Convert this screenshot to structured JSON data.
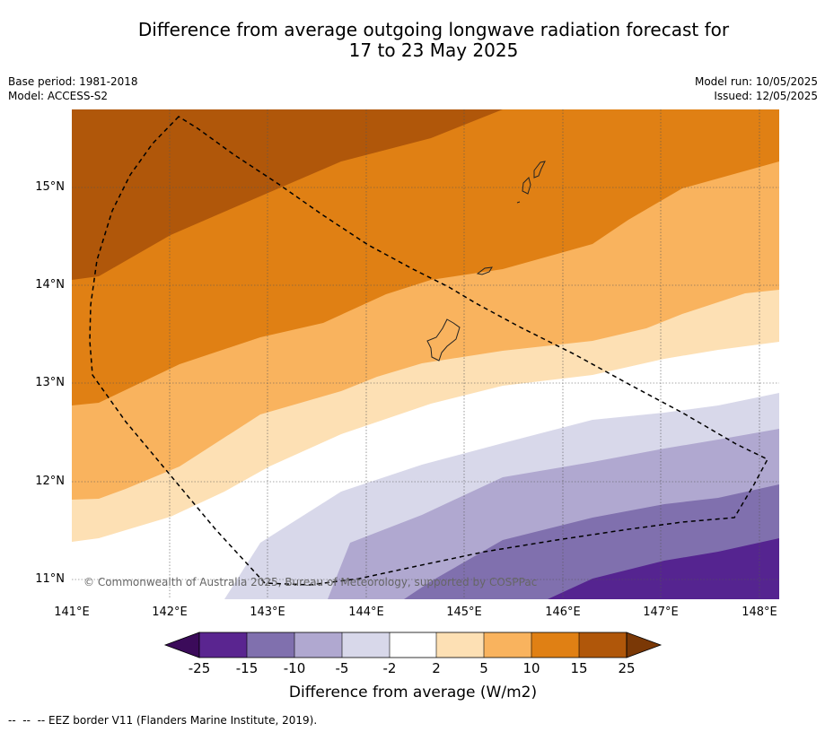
{
  "title": {
    "line1": "Difference from average outgoing longwave radiation forecast for",
    "line2": "17 to 23 May 2025"
  },
  "meta": {
    "base_period": "Base period: 1981-2018",
    "model": "Model: ACCESS-S2",
    "model_run": "Model run: 10/05/2025",
    "issued": "Issued: 12/05/2025"
  },
  "map": {
    "lat_labels": [
      "15°N",
      "14°N",
      "13°N",
      "12°N",
      "11°N"
    ],
    "lon_labels": [
      "141°E",
      "142°E",
      "143°E",
      "144°E",
      "145°E",
      "146°E",
      "147°E",
      "148°E"
    ],
    "copyright": "© Commonwealth of Australia 2025, Bureau of Meteorology, supported by COSPPac",
    "colors": {
      "brown_dark": "#b0570a",
      "orange": "#e08014",
      "orange_light": "#f9b35e",
      "peach": "#fde0b4",
      "white": "#ffffff",
      "lavender_light": "#d8d8ea",
      "lavender": "#b0a8d0",
      "purple_mid": "#8070ae",
      "purple_dark": "#552490"
    }
  },
  "colorbar": {
    "ticks": [
      "-25",
      "-15",
      "-10",
      "-5",
      "-2",
      "2",
      "5",
      "10",
      "15",
      "25"
    ],
    "label": "Difference from average (W/m2)",
    "colors": [
      "#3b0b5a",
      "#5a2590",
      "#8070ae",
      "#b0a8d0",
      "#d8d8ea",
      "#ffffff",
      "#fde0b4",
      "#f9b35e",
      "#e08014",
      "#b0570a",
      "#7a3806"
    ]
  },
  "footnote": "--  --  -- EEZ border V11 (Flanders Marine Institute, 2019)."
}
